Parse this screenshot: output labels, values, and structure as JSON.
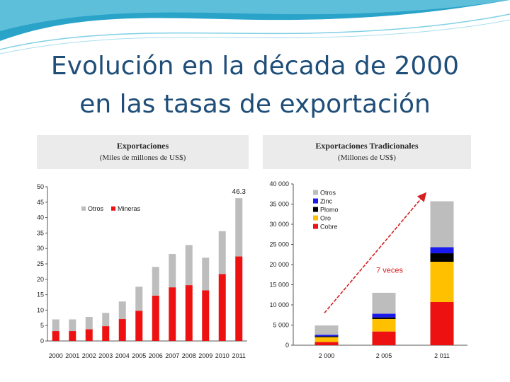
{
  "slide": {
    "title_line1": "Evolución en la década de 2000",
    "title_line2": "en las tasas de exportación"
  },
  "colors": {
    "title": "#1f4e79",
    "otros": "#bdbdbd",
    "mineras": "#ee1111",
    "zinc": "#1a1aee",
    "plomo": "#000000",
    "oro": "#ffc000",
    "cobre": "#ee1111",
    "arrow": "#d42020"
  },
  "chart_data": [
    {
      "type": "bar",
      "stacked": true,
      "title": "Exportaciones",
      "subtitle": "(Miles de millones de US$)",
      "categories": [
        "2000",
        "2001",
        "2002",
        "2003",
        "2004",
        "2005",
        "2006",
        "2007",
        "2008",
        "2009",
        "2010",
        "2011"
      ],
      "series": [
        {
          "name": "Mineras",
          "values": [
            3.2,
            3.2,
            3.8,
            4.8,
            7.1,
            9.8,
            14.7,
            17.4,
            18.1,
            16.4,
            21.7,
            27.4
          ]
        },
        {
          "name": "Otros",
          "values": [
            3.8,
            3.8,
            4.0,
            4.3,
            5.7,
            7.8,
            9.3,
            10.8,
            13.0,
            10.6,
            13.9,
            18.9
          ]
        }
      ],
      "ylim": [
        0,
        50
      ],
      "yticks": [
        0,
        5,
        10,
        15,
        20,
        25,
        30,
        35,
        40,
        45,
        50
      ],
      "annotation": "46.3",
      "legend": [
        "Otros",
        "Mineras"
      ],
      "legend_position": "top-left"
    },
    {
      "type": "bar",
      "stacked": true,
      "title": "Exportaciones Tradicionales",
      "subtitle": "(Millones de US$)",
      "categories": [
        "2 000",
        "2 005",
        "2 011"
      ],
      "series": [
        {
          "name": "Cobre",
          "values": [
            800,
            3400,
            10700
          ]
        },
        {
          "name": "Oro",
          "values": [
            1200,
            3100,
            10000
          ]
        },
        {
          "name": "Plomo",
          "values": [
            200,
            400,
            2100
          ]
        },
        {
          "name": "Zinc",
          "values": [
            400,
            900,
            1500
          ]
        },
        {
          "name": "Otros",
          "values": [
            2300,
            5200,
            11400
          ]
        }
      ],
      "ylim": [
        0,
        40000
      ],
      "yticks": [
        0,
        5000,
        10000,
        15000,
        20000,
        25000,
        30000,
        35000,
        40000
      ],
      "ytick_labels": [
        "0",
        "5 000",
        "10 000",
        "15 000",
        "20 000",
        "25 000",
        "30 000",
        "35 000",
        "40 000"
      ],
      "annotation": "7 veces",
      "legend": [
        "Otros",
        "Zinc",
        "Plomo",
        "Oro",
        "Cobre"
      ],
      "legend_position": "top-left"
    }
  ]
}
